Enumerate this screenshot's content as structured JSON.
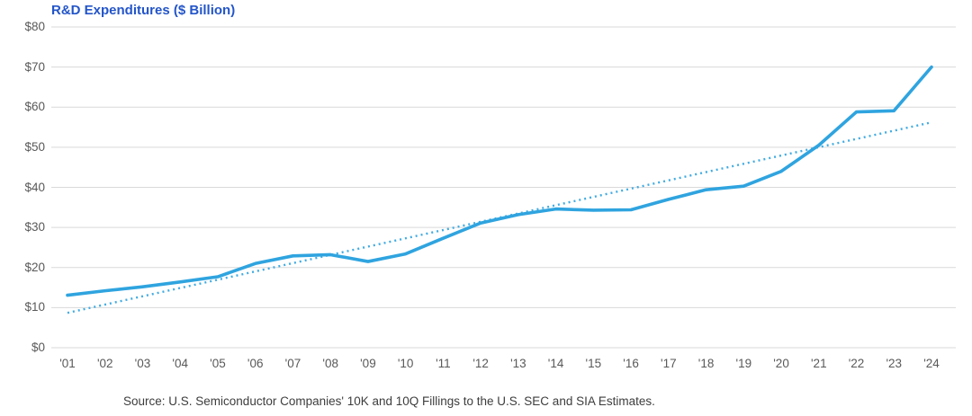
{
  "chart": {
    "title": "R&D Expenditures ($ Billion)",
    "source": "Source: U.S. Semiconductor Companies' 10K and 10Q Fillings to the U.S. SEC and SIA Estimates.",
    "colors": {
      "line": "#2fa4df",
      "trend": "#41abe2",
      "title": "#2355c9",
      "axis_text": "#595959",
      "gridline": "#d9d9d9",
      "source_text": "#3d3d3d"
    }
  },
  "chart_data": {
    "type": "line",
    "title": "R&D Expenditures ($ Billion)",
    "x": [
      "'01",
      "'02",
      "'03",
      "'04",
      "'05",
      "'06",
      "'07",
      "'08",
      "'09",
      "'10",
      "'11",
      "'12",
      "'13",
      "'14",
      "'15",
      "'16",
      "'17",
      "'18",
      "'19",
      "'20",
      "'21",
      "'22",
      "'23",
      "'24"
    ],
    "series": [
      {
        "name": "R&D Expenditures ($ Billion)",
        "style": "solid",
        "values": [
          13.1,
          14.2,
          15.2,
          16.4,
          17.7,
          21.0,
          22.9,
          23.2,
          21.5,
          23.4,
          27.3,
          31.1,
          33.2,
          34.6,
          34.3,
          34.4,
          37.0,
          39.4,
          40.3,
          44.0,
          50.5,
          58.8,
          59.1,
          70.0
        ]
      }
    ],
    "trend": {
      "name": "Linear trend (dotted)",
      "type": "linear",
      "start_value": 8.7,
      "end_value": 56.2
    },
    "y_ticks": [
      "$0",
      "$10",
      "$20",
      "$30",
      "$40",
      "$50",
      "$60",
      "$70",
      "$80"
    ],
    "ylim": [
      0,
      80
    ],
    "xlabel": "",
    "ylabel": "",
    "grid": "horizontal",
    "legend": "none"
  }
}
